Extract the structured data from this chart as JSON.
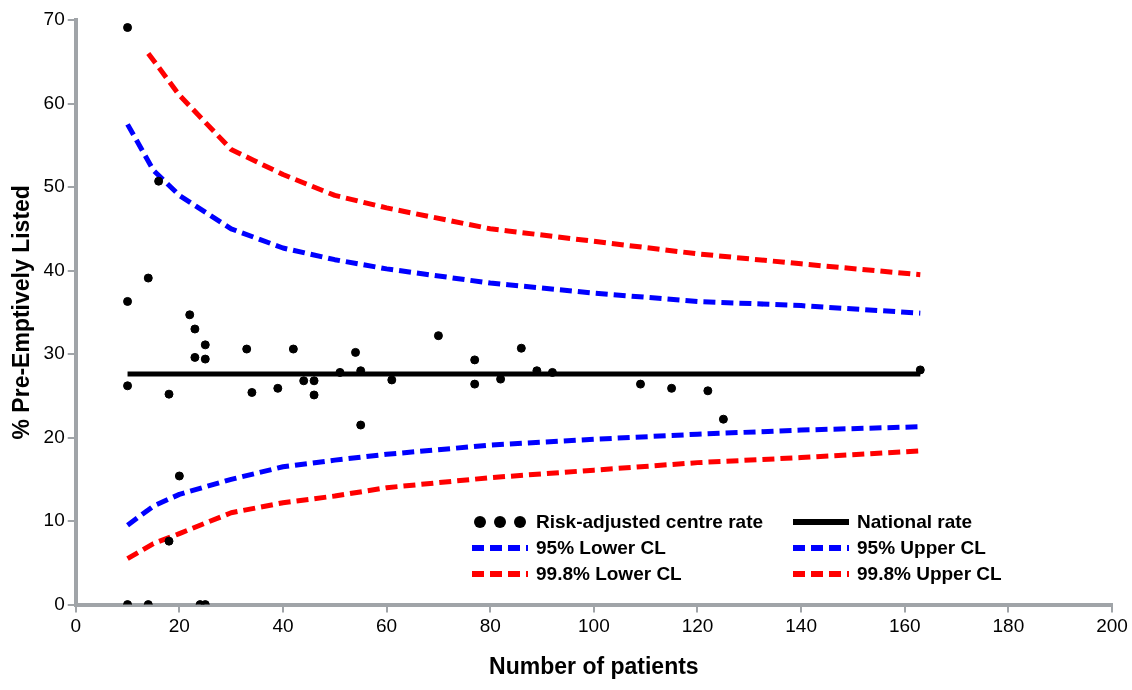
{
  "chart_data": {
    "type": "scatter",
    "xlabel": "Number of patients",
    "ylabel": "% Pre-Emptively Listed",
    "xlim": [
      0,
      200
    ],
    "ylim": [
      0,
      70
    ],
    "xticks": [
      0,
      20,
      40,
      60,
      80,
      100,
      120,
      140,
      160,
      180,
      200
    ],
    "yticks": [
      0,
      10,
      20,
      30,
      40,
      50,
      60,
      70
    ],
    "grid": false,
    "legend": "bottom right",
    "series": [
      {
        "name": "Risk-adjusted centre rate",
        "marker": "circle",
        "color": "#000000",
        "x": [
          10,
          10,
          10,
          14,
          16,
          18,
          18,
          20,
          22,
          23,
          23,
          25,
          25,
          33,
          34,
          39,
          42,
          44,
          46,
          46,
          51,
          54,
          55,
          55,
          61,
          70,
          77,
          77,
          82,
          86,
          89,
          92,
          109,
          115,
          122,
          125,
          163,
          10,
          14,
          24,
          25
        ],
        "values": [
          69.1,
          36.3,
          26.2,
          39.1,
          50.7,
          25.2,
          7.6,
          15.4,
          34.7,
          33.0,
          29.6,
          31.1,
          29.4,
          30.6,
          25.4,
          25.9,
          30.6,
          26.8,
          26.8,
          25.1,
          27.8,
          30.2,
          28.0,
          21.5,
          26.9,
          32.2,
          29.3,
          26.4,
          27.0,
          30.7,
          28.0,
          27.8,
          26.4,
          25.9,
          25.6,
          22.2,
          28.1,
          0,
          0,
          0,
          0
        ]
      },
      {
        "name": "National rate",
        "type": "line",
        "line_style": "solid",
        "color": "#000000",
        "x": [
          10,
          163
        ],
        "values": [
          27.6,
          27.6
        ]
      },
      {
        "name": "95% Lower CL",
        "type": "line",
        "line_style": "dashed",
        "color": "#0000ff",
        "x": [
          10,
          15,
          20,
          30,
          40,
          50,
          60,
          80,
          100,
          120,
          140,
          163
        ],
        "values": [
          9.5,
          11.8,
          13.2,
          15,
          16.5,
          17.3,
          18,
          19.1,
          19.8,
          20.4,
          20.9,
          21.3
        ]
      },
      {
        "name": "95% Upper CL",
        "type": "line",
        "line_style": "dashed",
        "color": "#0000ff",
        "x": [
          10,
          15,
          20,
          25,
          30,
          40,
          50,
          60,
          80,
          100,
          120,
          140,
          163
        ],
        "values": [
          57.5,
          52,
          49,
          47,
          45,
          42.7,
          41.3,
          40.2,
          38.5,
          37.3,
          36.3,
          35.8,
          34.9
        ]
      },
      {
        "name": "99.8% Lower CL",
        "type": "line",
        "line_style": "dashed",
        "color": "#ff0000",
        "x": [
          10,
          15,
          20,
          30,
          40,
          50,
          60,
          80,
          100,
          120,
          140,
          163
        ],
        "values": [
          5.5,
          7.3,
          8.5,
          11,
          12.2,
          13,
          14,
          15.2,
          16.1,
          17,
          17.6,
          18.4
        ]
      },
      {
        "name": "99.8% Upper CL",
        "type": "line",
        "line_style": "dashed",
        "color": "#ff0000",
        "x": [
          14,
          20,
          30,
          40,
          50,
          60,
          80,
          100,
          120,
          140,
          163
        ],
        "values": [
          66,
          61,
          54.5,
          51.5,
          49,
          47.5,
          45,
          43.5,
          42,
          40.8,
          39.5
        ]
      }
    ]
  }
}
